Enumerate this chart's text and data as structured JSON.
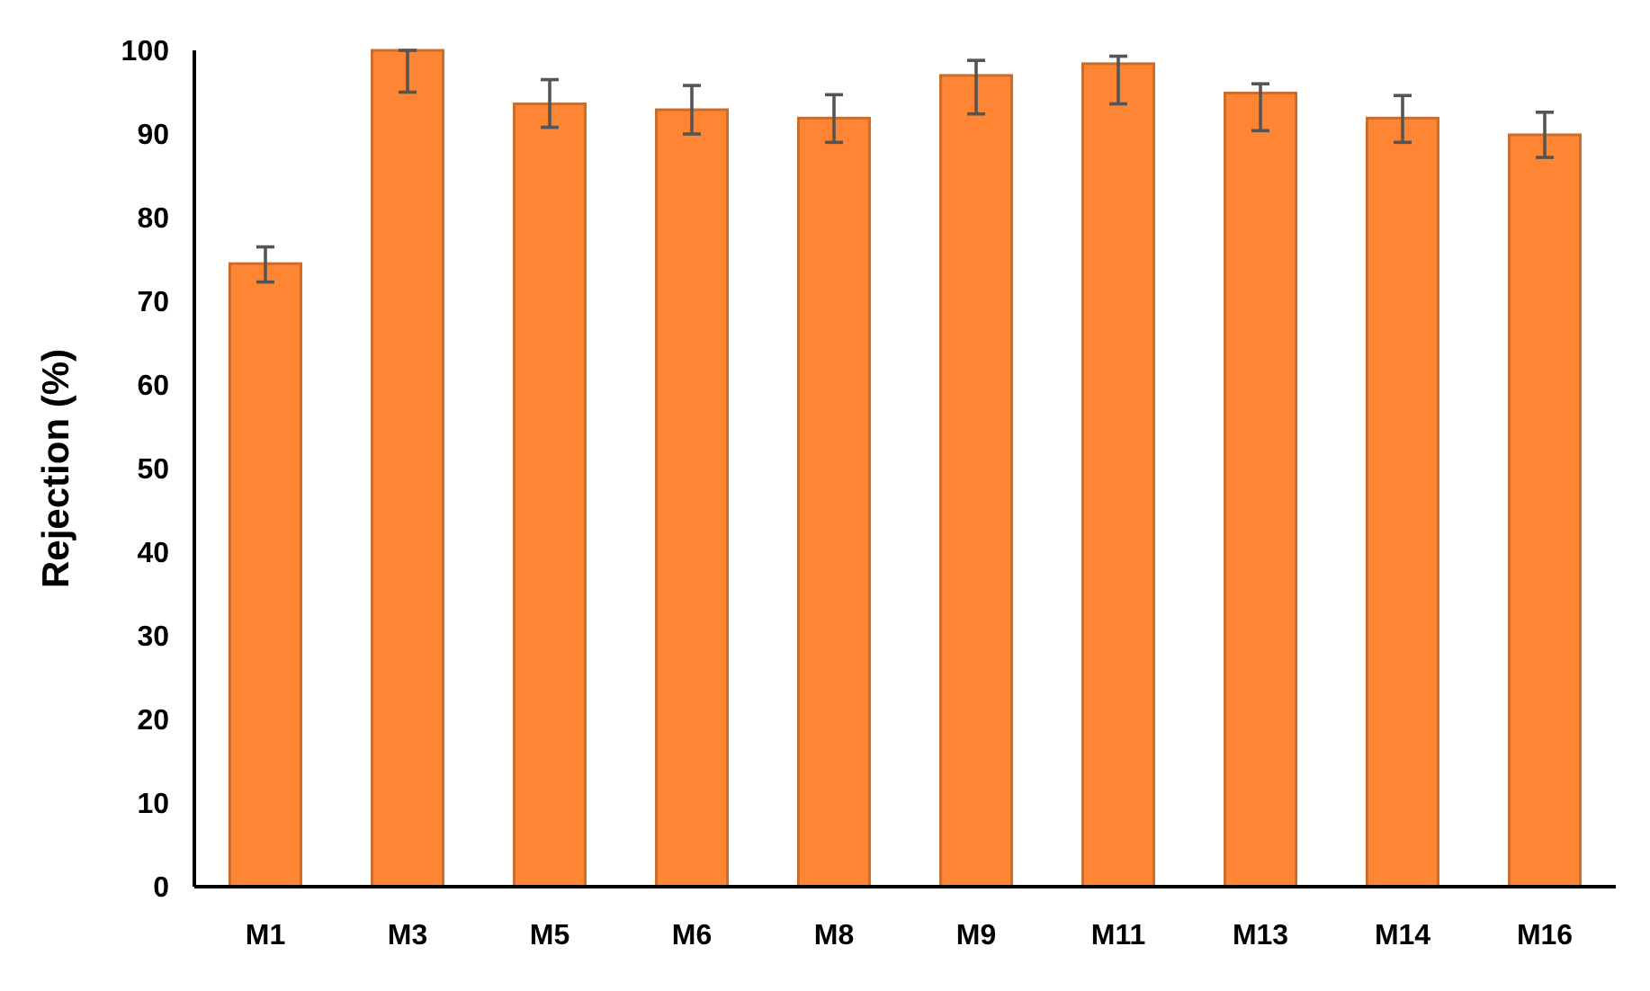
{
  "chart_data": {
    "type": "bar",
    "ylabel": "Rejection (%)",
    "categories": [
      "M1",
      "M3",
      "M5",
      "M6",
      "M8",
      "M9",
      "M11",
      "M13",
      "M14",
      "M16"
    ],
    "values": [
      74.5,
      100,
      93.6,
      92.9,
      91.9,
      97,
      98.4,
      94.9,
      91.9,
      89.9
    ],
    "errors": [
      [
        72.3,
        76.5
      ],
      [
        95,
        100
      ],
      [
        90.8,
        96.5
      ],
      [
        90,
        95.8
      ],
      [
        89,
        94.7
      ],
      [
        92.4,
        98.8
      ],
      [
        93.6,
        99.3
      ],
      [
        90.4,
        96
      ],
      [
        89,
        94.6
      ],
      [
        87.2,
        92.6
      ]
    ],
    "color": "#fe8533",
    "ylim": [
      0,
      100
    ],
    "yticks": [
      0,
      10,
      20,
      30,
      40,
      50,
      60,
      70,
      80,
      90,
      100
    ],
    "grid": false
  }
}
